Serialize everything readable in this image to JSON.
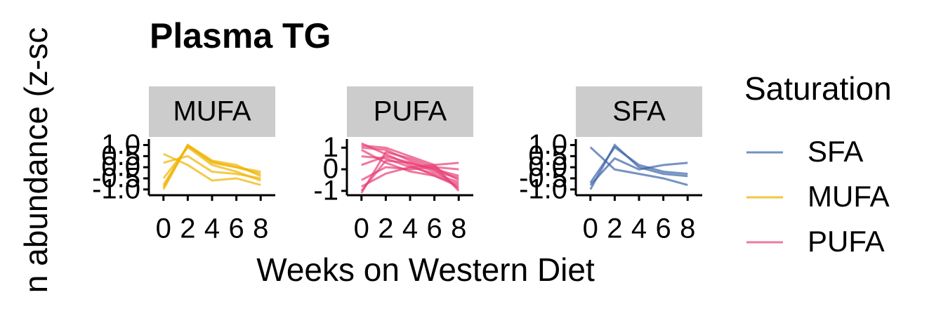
{
  "chart_data": {
    "type": "line",
    "title": "Plasma TG",
    "y_label": "n abundance (z-sc",
    "x_label": "Weeks on Western Diet",
    "legend": {
      "title": "Saturation",
      "entries": [
        {
          "name": "SFA",
          "color": "#6f93c3"
        },
        {
          "name": "MUFA",
          "color": "#f3c63f"
        },
        {
          "name": "PUFA",
          "color": "#ec7aa0"
        }
      ]
    },
    "facets": [
      {
        "name": "MUFA",
        "color": "#f0b400",
        "xlim": [
          -1.2,
          9.2
        ],
        "xticks": [
          0,
          2,
          4,
          6,
          8
        ],
        "ylim": [
          -1.26,
          1.27
        ],
        "yticks": [
          {
            "value": 1,
            "label": "1.0"
          },
          0.5,
          {
            "value": 0,
            "label": "0.0"
          },
          -0.5,
          {
            "value": -1,
            "label": "-1.0"
          }
        ],
        "x": [
          0,
          2,
          4,
          6,
          8
        ],
        "series": [
          {
            "values": [
              -1,
              1,
              0.2,
              0,
              -0.3
            ]
          },
          {
            "values": [
              -0.9,
              1,
              0.3,
              0.1,
              -0.4
            ]
          },
          {
            "values": [
              0.6,
              0.1,
              -0.6,
              -0.5,
              -0.8
            ]
          },
          {
            "values": [
              0.2,
              0.5,
              -0.2,
              -0.3,
              -0.5
            ]
          },
          {
            "values": [
              -0.5,
              0.9,
              0.1,
              -0.2,
              -0.6
            ]
          },
          {
            "values": [
              -0.8,
              0.95,
              0.25,
              0,
              -0.2
            ]
          }
        ]
      },
      {
        "name": "PUFA",
        "color": "#e83e76",
        "xlim": [
          -1.2,
          9.2
        ],
        "xticks": [
          0,
          2,
          4,
          6,
          8
        ],
        "ylim": [
          -1.2,
          1.4
        ],
        "yticks": [
          1,
          0,
          -1
        ],
        "x": [
          0,
          2,
          4,
          6,
          8
        ],
        "series": [
          {
            "values": [
              1.2,
              0.7,
              0.2,
              -0.3,
              -0.8
            ]
          },
          {
            "values": [
              -1,
              0.4,
              0.3,
              0,
              -0.3
            ]
          },
          {
            "values": [
              1,
              0.9,
              0.4,
              0,
              -0.9
            ]
          },
          {
            "values": [
              -0.8,
              -0.2,
              0.1,
              0.2,
              0.3
            ]
          },
          {
            "values": [
              0.6,
              0.5,
              0.1,
              -0.2,
              -0.6
            ]
          },
          {
            "values": [
              -1.1,
              0.8,
              0.5,
              0.1,
              -0.5
            ]
          },
          {
            "values": [
              0.9,
              0.3,
              -0.1,
              -0.3,
              -0.7
            ]
          },
          {
            "values": [
              0.2,
              0.6,
              0.3,
              -0.1,
              -0.4
            ]
          },
          {
            "values": [
              -0.5,
              0.1,
              0,
              0.1,
              0
            ]
          },
          {
            "values": [
              1.1,
              1,
              0.6,
              0.2,
              -1
            ]
          }
        ]
      },
      {
        "name": "SFA",
        "color": "#3a64a8",
        "xlim": [
          -1.2,
          9.2
        ],
        "xticks": [
          0,
          2,
          4,
          6,
          8
        ],
        "ylim": [
          -1.26,
          1.27
        ],
        "yticks": [
          {
            "value": 1,
            "label": "1.0"
          },
          0.5,
          {
            "value": 0,
            "label": "0.0"
          },
          -0.5,
          {
            "value": -1,
            "label": "-1.0"
          }
        ],
        "x": [
          0,
          2,
          4,
          6,
          8
        ],
        "series": [
          {
            "values": [
              -1,
              1,
              0,
              -0.3,
              -0.4
            ]
          },
          {
            "values": [
              0.9,
              -0.1,
              -0.3,
              -0.5,
              -0.8
            ]
          },
          {
            "values": [
              -0.8,
              0.4,
              -0.1,
              0.1,
              0.2
            ]
          },
          {
            "values": [
              -0.7,
              0.9,
              0.1,
              -0.2,
              -0.3
            ]
          }
        ]
      }
    ]
  }
}
